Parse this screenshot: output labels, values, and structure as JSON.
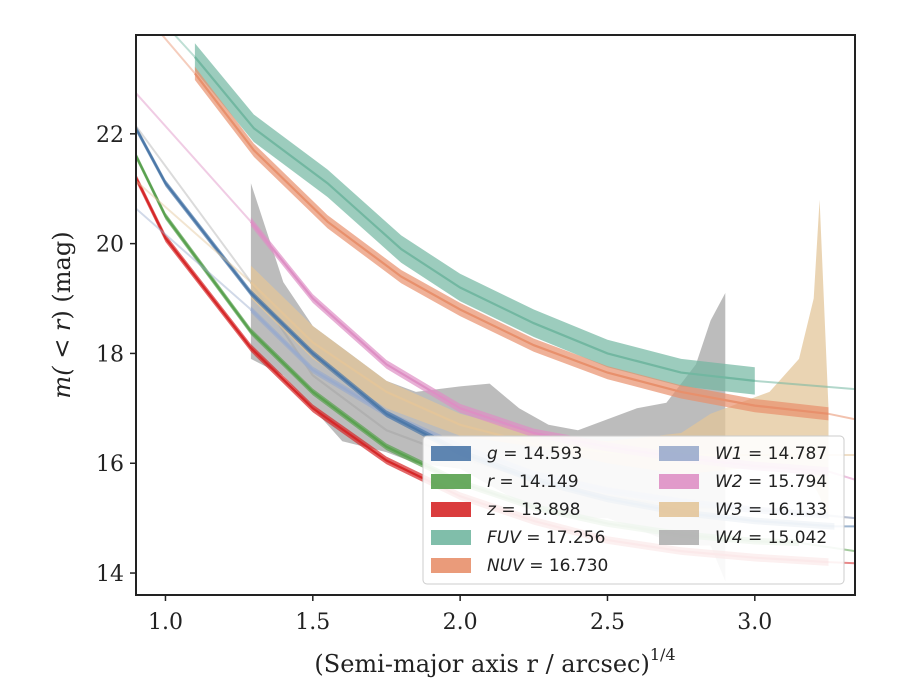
{
  "chart_data": {
    "type": "line",
    "xlabel": "(Semi-major axis r / arcsec)",
    "xlabel_exponent": "1/4",
    "ylabel_prefix": "m(",
    "ylabel_op": " < r",
    "ylabel_suffix": ") (mag)",
    "xlim": [
      0.9,
      3.34
    ],
    "ylim": [
      23.8,
      13.6
    ],
    "inverted_y": true,
    "xticks": [
      1.0,
      1.5,
      2.0,
      2.5,
      3.0
    ],
    "xtick_labels": [
      "1.0",
      "1.5",
      "2.0",
      "2.5",
      "3.0"
    ],
    "yticks": [
      14,
      16,
      18,
      20,
      22
    ],
    "ytick_labels": [
      "14",
      "16",
      "18",
      "20",
      "22"
    ],
    "grid": false,
    "legend_position": "lower-right",
    "series": [
      {
        "name": "g",
        "value": "14.593",
        "color": "#4c78a8",
        "x": [
          0.9,
          1.0,
          1.29,
          1.5,
          1.75,
          2.0,
          2.25,
          2.5,
          2.75,
          3.0,
          3.27
        ],
        "y": [
          22.1,
          21.1,
          19.1,
          18.0,
          16.9,
          16.2,
          15.7,
          15.35,
          15.1,
          14.95,
          14.85
        ],
        "x_ext": [
          3.27,
          3.34
        ],
        "y_ext": [
          14.85,
          14.85
        ],
        "band": 0.06
      },
      {
        "name": "r",
        "value": "14.149",
        "color": "#59a14f",
        "x": [
          0.9,
          1.0,
          1.29,
          1.5,
          1.75,
          2.0,
          2.25,
          2.5,
          2.75,
          3.0,
          3.15
        ],
        "y": [
          21.6,
          20.5,
          18.4,
          17.3,
          16.3,
          15.65,
          15.2,
          14.9,
          14.7,
          14.58,
          14.55
        ],
        "x_ext": [
          3.15,
          3.34
        ],
        "y_ext": [
          14.55,
          14.4
        ],
        "band": 0.06
      },
      {
        "name": "z",
        "value": "13.898",
        "color": "#d62728",
        "x": [
          0.9,
          1.0,
          1.29,
          1.5,
          1.75,
          2.0,
          2.25,
          2.5,
          2.75,
          3.0,
          3.25
        ],
        "y": [
          21.2,
          20.1,
          18.1,
          17.0,
          16.05,
          15.4,
          14.95,
          14.6,
          14.4,
          14.28,
          14.2
        ],
        "x_ext": [
          3.25,
          3.34
        ],
        "y_ext": [
          14.2,
          14.18
        ],
        "band": 0.07
      },
      {
        "name": "FUV",
        "value": "17.256",
        "color": "#72b7a1",
        "x": [
          1.1,
          1.3,
          1.55,
          1.8,
          2.0,
          2.25,
          2.5,
          2.75,
          3.0
        ],
        "y": [
          23.4,
          22.1,
          21.1,
          19.9,
          19.2,
          18.55,
          18.0,
          17.65,
          17.5
        ],
        "x_ext": [
          3.0,
          3.34
        ],
        "y_ext": [
          17.5,
          17.35
        ],
        "band": 0.25
      },
      {
        "name": "NUV",
        "value": "16.730",
        "color": "#e8906c",
        "x": [
          1.1,
          1.3,
          1.55,
          1.8,
          2.0,
          2.25,
          2.5,
          2.75,
          3.0,
          3.25
        ],
        "y": [
          23.1,
          21.7,
          20.4,
          19.4,
          18.8,
          18.15,
          17.65,
          17.3,
          17.05,
          16.9
        ],
        "x_ext": [
          3.25,
          3.34
        ],
        "y_ext": [
          16.9,
          16.8
        ],
        "band": 0.12
      },
      {
        "name": "W1",
        "value": "14.787",
        "color": "#9aabcc",
        "x": [
          1.29,
          1.5,
          1.75,
          2.0,
          2.25,
          2.5,
          2.75,
          3.0,
          3.25
        ],
        "y": [
          18.8,
          17.7,
          16.9,
          16.3,
          15.8,
          15.5,
          15.3,
          15.15,
          15.05
        ],
        "x_ext": [
          3.25,
          3.34
        ],
        "y_ext": [
          15.05,
          15.0
        ],
        "band": 0.06
      },
      {
        "name": "W2",
        "value": "15.794",
        "color": "#de8fc4",
        "x": [
          1.29,
          1.5,
          1.75,
          2.0,
          2.25,
          2.5,
          2.75,
          3.0,
          3.25
        ],
        "y": [
          20.4,
          19.0,
          17.8,
          17.0,
          16.55,
          16.3,
          16.1,
          15.95,
          15.85
        ],
        "x_ext": [
          3.25,
          3.34
        ],
        "y_ext": [
          15.85,
          15.7
        ],
        "band": 0.08
      },
      {
        "name": "W3",
        "value": "16.133",
        "color": "#e3c59a",
        "x": [
          1.29,
          1.5,
          1.75,
          2.0,
          2.25,
          2.5,
          2.75,
          3.0,
          3.25
        ],
        "y": [
          19.3,
          18.2,
          17.3,
          16.7,
          16.35,
          16.2,
          16.15,
          16.15,
          16.15
        ],
        "x_ext": [
          3.25,
          3.34
        ],
        "y_ext": [
          16.15,
          16.15
        ],
        "band_x": [
          1.29,
          1.5,
          1.75,
          2.0,
          2.25,
          2.5,
          2.75,
          2.85,
          2.95,
          3.05,
          3.15,
          3.2,
          3.22,
          3.25
        ],
        "band_lo": [
          19.0,
          17.9,
          17.0,
          16.5,
          16.3,
          16.0,
          15.8,
          15.85,
          15.9,
          15.9,
          15.9,
          15.6,
          15.4,
          15.0
        ],
        "band_hi": [
          19.6,
          18.5,
          17.5,
          16.9,
          16.55,
          16.4,
          16.55,
          16.9,
          17.1,
          17.3,
          17.9,
          19.0,
          20.8,
          17.0
        ]
      },
      {
        "name": "W4",
        "value": "15.042",
        "color": "#b0b0b0",
        "x": [
          1.29,
          1.5,
          1.75,
          2.0,
          2.25,
          2.5,
          2.75,
          2.9
        ],
        "y": [
          19.3,
          17.6,
          16.6,
          16.1,
          15.7,
          15.4,
          15.2,
          15.2
        ],
        "x_ext": [
          2.9,
          3.34
        ],
        "y_ext": [
          15.2,
          15.0
        ],
        "band_x": [
          1.29,
          1.4,
          1.5,
          1.6,
          1.75,
          1.85,
          2.0,
          2.1,
          2.2,
          2.3,
          2.4,
          2.5,
          2.6,
          2.7,
          2.8,
          2.85,
          2.9
        ],
        "band_lo": [
          17.9,
          17.6,
          17.0,
          16.4,
          16.2,
          16.0,
          15.9,
          15.6,
          15.3,
          15.1,
          15.0,
          15.0,
          14.8,
          14.6,
          14.5,
          14.5,
          13.85
        ],
        "band_hi": [
          21.1,
          19.3,
          18.5,
          18.1,
          17.5,
          17.3,
          17.4,
          17.45,
          17.0,
          16.7,
          16.6,
          16.8,
          17.0,
          17.1,
          17.8,
          18.6,
          19.1
        ]
      }
    ]
  }
}
